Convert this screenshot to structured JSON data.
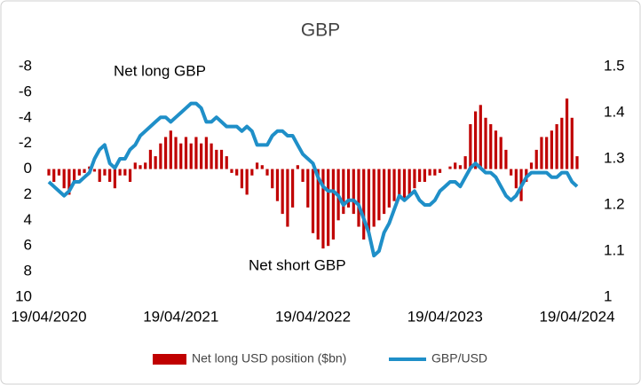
{
  "chart_data": {
    "type": "combo",
    "title": "GBP",
    "annotations": [
      "Net long GBP",
      "Net short GBP"
    ],
    "categories": [
      "19/04/2020",
      null,
      null,
      null,
      null,
      null,
      null,
      null,
      null,
      null,
      null,
      null,
      null,
      null,
      null,
      null,
      null,
      null,
      null,
      null,
      null,
      null,
      null,
      null,
      null,
      null,
      "19/04/2021",
      null,
      null,
      null,
      null,
      null,
      null,
      null,
      null,
      null,
      null,
      null,
      null,
      null,
      null,
      null,
      null,
      null,
      null,
      null,
      null,
      null,
      null,
      null,
      null,
      null,
      "19/04/2022",
      null,
      null,
      null,
      null,
      null,
      null,
      null,
      null,
      null,
      null,
      null,
      null,
      null,
      null,
      null,
      null,
      null,
      null,
      null,
      null,
      null,
      null,
      null,
      null,
      null,
      "19/04/2023",
      null,
      null,
      null,
      null,
      null,
      null,
      null,
      null,
      null,
      null,
      null,
      null,
      null,
      null,
      null,
      null,
      null,
      null,
      null,
      null,
      null,
      null,
      null,
      null,
      null,
      "19/04/2024"
    ],
    "series": [
      {
        "name": "Net long USD position ($bn)",
        "type": "bar",
        "color": "#c00000",
        "values": [
          0.5,
          1,
          0.5,
          1.5,
          2,
          1,
          0.5,
          0.3,
          -0.2,
          0.2,
          1,
          0.5,
          1,
          1.5,
          0.5,
          0.5,
          1,
          -0.5,
          -0.3,
          -0.5,
          -1.5,
          -1,
          -2,
          -2.5,
          -3,
          -2.5,
          -2,
          -2.5,
          -2,
          -2.5,
          -2,
          -2.5,
          -2,
          -1.5,
          -1.5,
          -1,
          0.3,
          0.5,
          1.5,
          2,
          0.5,
          -0.5,
          -0.3,
          0.5,
          1.5,
          2.5,
          3.5,
          4.5,
          3,
          -0.3,
          1,
          3,
          5,
          5.5,
          6.2,
          6,
          5.5,
          4,
          3.5,
          3,
          3.5,
          4.5,
          5.5,
          5,
          4.5,
          4,
          3.5,
          3,
          2.5,
          2,
          2.5,
          2,
          1.5,
          1,
          1,
          0.5,
          0.5,
          0.3,
          0,
          -0.2,
          -0.5,
          -0.3,
          -1,
          -3.5,
          -4.5,
          -5,
          -4,
          -3.5,
          -3,
          -2.5,
          -1.5,
          0.5,
          1.5,
          2.5,
          1,
          -0.5,
          -1.5,
          -2.5,
          -2.5,
          -3,
          -3.5,
          -4,
          -5.5,
          -4,
          -1
        ]
      },
      {
        "name": "GBP/USD",
        "type": "line",
        "axis": "y2",
        "color": "#1f8fc8",
        "values": [
          1.25,
          1.24,
          1.23,
          1.22,
          1.23,
          1.25,
          1.25,
          1.26,
          1.27,
          1.3,
          1.32,
          1.33,
          1.29,
          1.28,
          1.3,
          1.3,
          1.32,
          1.33,
          1.35,
          1.36,
          1.37,
          1.38,
          1.39,
          1.39,
          1.38,
          1.39,
          1.4,
          1.41,
          1.42,
          1.42,
          1.41,
          1.38,
          1.38,
          1.39,
          1.38,
          1.37,
          1.37,
          1.37,
          1.36,
          1.37,
          1.36,
          1.33,
          1.33,
          1.33,
          1.35,
          1.36,
          1.36,
          1.35,
          1.35,
          1.33,
          1.31,
          1.3,
          1.29,
          1.26,
          1.24,
          1.23,
          1.23,
          1.22,
          1.2,
          1.21,
          1.21,
          1.2,
          1.17,
          1.14,
          1.09,
          1.1,
          1.14,
          1.16,
          1.19,
          1.22,
          1.21,
          1.22,
          1.23,
          1.21,
          1.2,
          1.2,
          1.21,
          1.23,
          1.24,
          1.25,
          1.25,
          1.24,
          1.26,
          1.28,
          1.29,
          1.28,
          1.27,
          1.27,
          1.26,
          1.24,
          1.22,
          1.21,
          1.22,
          1.24,
          1.26,
          1.27,
          1.27,
          1.27,
          1.27,
          1.26,
          1.26,
          1.27,
          1.27,
          1.25,
          1.24
        ]
      }
    ],
    "ylim": [
      -8,
      10
    ],
    "y_inverted": true,
    "yticks": [
      -8,
      -6,
      -4,
      -2,
      0,
      2,
      4,
      6,
      8,
      10
    ],
    "y2lim": [
      1,
      1.5
    ],
    "y2ticks": [
      1,
      1.1,
      1.2,
      1.3,
      1.4,
      1.5
    ],
    "grid": false,
    "legend": "bottom"
  }
}
